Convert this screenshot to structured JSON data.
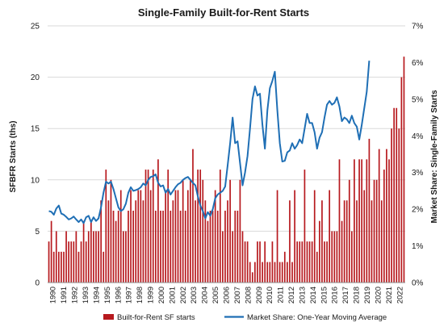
{
  "chart_data": {
    "type": "bar",
    "title": "Single-Family Built-for-Rent Starts",
    "ylabel": "SFBFR Starts (ths)",
    "y2label": "Market Share: Single-Family Starts",
    "ylim": [
      0,
      25
    ],
    "y2lim": [
      0,
      7
    ],
    "yticks": [
      "0",
      "5",
      "10",
      "15",
      "20",
      "25"
    ],
    "y2ticks": [
      "0%",
      "1%",
      "2%",
      "3%",
      "4%",
      "5%",
      "6%",
      "7%"
    ],
    "xticks": [
      "1990",
      "1991",
      "1992",
      "1993",
      "1994",
      "1995",
      "1996",
      "1997",
      "1998",
      "1999",
      "2000",
      "2001",
      "2002",
      "2003",
      "2004",
      "2005",
      "2006",
      "2007",
      "2008",
      "2009",
      "2010",
      "2011",
      "2012",
      "2013",
      "2014",
      "2015",
      "2016",
      "2017",
      "2018",
      "2019",
      "2020",
      "2021",
      "2022"
    ],
    "grid": true,
    "legend_position": "bottom",
    "colors": {
      "bars": "#b7191e",
      "line": "#1f6fb5",
      "grid": "#d9d9d9"
    },
    "series": [
      {
        "name": "Built-for-Rent SF starts",
        "type": "bar",
        "axis": "left",
        "values": [
          4,
          6,
          3,
          5,
          3,
          3,
          3,
          5,
          4,
          4,
          4,
          5,
          3,
          4,
          6,
          4,
          5,
          6,
          5,
          5,
          5,
          8,
          3,
          11,
          8,
          10,
          7,
          6,
          7,
          9,
          5,
          5,
          7,
          9,
          7,
          8,
          9,
          9,
          8,
          11,
          11,
          9,
          11,
          7,
          12,
          7,
          7,
          9,
          11,
          7,
          8,
          9,
          9,
          7,
          10,
          7,
          9,
          10,
          13,
          8,
          11,
          11,
          10,
          8,
          6,
          7,
          7,
          9,
          7,
          11,
          5,
          7,
          8,
          10,
          5,
          7,
          7,
          10,
          5,
          4,
          4,
          2,
          1,
          2,
          4,
          4,
          2,
          4,
          2,
          2,
          4,
          2,
          9,
          2,
          2,
          3,
          2,
          8,
          2,
          9,
          4,
          4,
          4,
          11,
          4,
          4,
          4,
          9,
          3,
          6,
          8,
          4,
          4,
          9,
          5,
          5,
          5,
          12,
          6,
          8,
          8,
          10,
          5,
          12,
          8,
          12,
          12,
          9,
          12,
          14,
          8,
          10,
          10,
          13,
          8,
          11,
          13,
          12,
          15,
          17,
          17,
          15,
          20,
          22
        ]
      },
      {
        "name": "Market Share: One-Year Moving Average",
        "type": "line",
        "axis": "right",
        "values": [
          1.95,
          1.93,
          1.85,
          2.02,
          2.1,
          1.88,
          1.85,
          1.79,
          1.72,
          1.75,
          1.8,
          1.72,
          1.65,
          1.72,
          1.62,
          1.78,
          1.82,
          1.65,
          1.78,
          1.68,
          1.75,
          2.05,
          2.45,
          2.75,
          2.7,
          2.75,
          2.55,
          2.3,
          2.05,
          1.95,
          2.0,
          2.15,
          2.45,
          2.6,
          2.5,
          2.52,
          2.55,
          2.6,
          2.7,
          2.65,
          2.8,
          2.88,
          2.9,
          2.95,
          2.72,
          2.62,
          2.65,
          2.45,
          2.55,
          2.4,
          2.5,
          2.6,
          2.68,
          2.72,
          2.8,
          2.85,
          2.88,
          2.8,
          2.72,
          2.65,
          2.35,
          2.1,
          1.95,
          1.75,
          1.92,
          1.82,
          2.0,
          2.3,
          2.4,
          2.45,
          2.5,
          2.62,
          3.2,
          3.8,
          4.5,
          3.8,
          3.85,
          3.25,
          2.65,
          3.0,
          3.45,
          4.2,
          5.0,
          5.35,
          5.1,
          5.15,
          4.3,
          3.65,
          4.7,
          5.3,
          5.5,
          5.75,
          4.7,
          3.8,
          3.3,
          3.32,
          3.55,
          3.6,
          3.8,
          3.65,
          3.75,
          3.9,
          3.8,
          4.2,
          4.6,
          4.35,
          4.35,
          4.1,
          3.65,
          3.95,
          4.1,
          4.5,
          4.85,
          4.95,
          4.85,
          4.9,
          5.05,
          4.8,
          4.4,
          4.5,
          4.45,
          4.35,
          4.55,
          4.35,
          4.25,
          3.9,
          4.3,
          4.75,
          5.2,
          6.05
        ]
      }
    ]
  },
  "legend": {
    "bars_label": "Built-for-Rent SF starts",
    "line_label": "Market Share: One-Year Moving Average"
  }
}
